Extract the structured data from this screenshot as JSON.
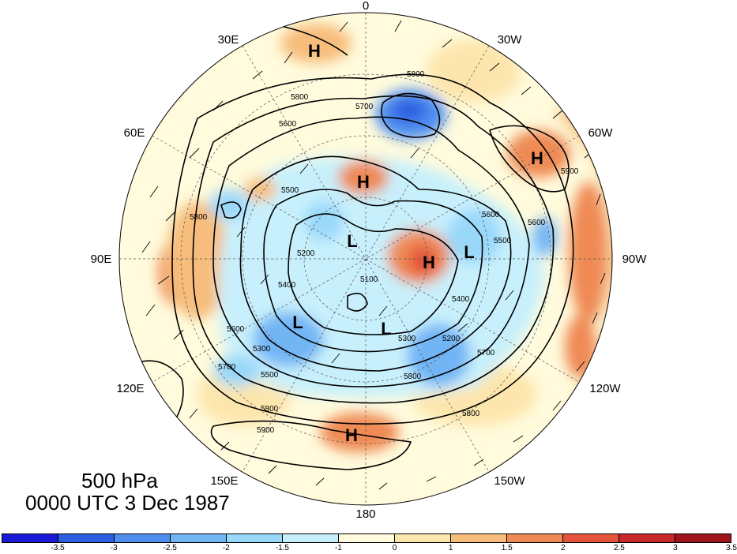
{
  "title": {
    "level": "500 hPa",
    "time": "0000 UTC 3 Dec 1987"
  },
  "longitude_labels": [
    "0",
    "30W",
    "60W",
    "90W",
    "120W",
    "150W",
    "180",
    "150E",
    "120E",
    "90E",
    "60E",
    "30E"
  ],
  "contour_labels": [
    "5800",
    "5700",
    "5800",
    "5600",
    "5500",
    "5800",
    "5400",
    "5200",
    "5100",
    "5600",
    "5500",
    "5400",
    "5300",
    "5300",
    "5200",
    "5600",
    "5700",
    "5800",
    "5900",
    "5600",
    "5500",
    "5700",
    "5800",
    "5800",
    "5900"
  ],
  "pressure_centers": [
    {
      "type": "H",
      "label": "H"
    },
    {
      "type": "H",
      "label": "H"
    },
    {
      "type": "H",
      "label": "H"
    },
    {
      "type": "H",
      "label": "H"
    },
    {
      "type": "H",
      "label": "H"
    },
    {
      "type": "L",
      "label": "L"
    },
    {
      "type": "L",
      "label": "L"
    },
    {
      "type": "L",
      "label": "L"
    },
    {
      "type": "L",
      "label": "L"
    }
  ],
  "colorbar": {
    "colors": [
      "#1a1ad6",
      "#2f5fe0",
      "#4f8ff0",
      "#72b5f5",
      "#9ad8fa",
      "#c8f0fc",
      "#fffbdc",
      "#fde6ad",
      "#f7bd7c",
      "#ef8a55",
      "#e3533b",
      "#c7282c",
      "#a0141d"
    ],
    "ticks": [
      "-3.5",
      "-3",
      "-2.5",
      "-2",
      "-1.5",
      "-1",
      "0",
      "1",
      "1.5",
      "2",
      "2.5",
      "3",
      "3.5"
    ]
  }
}
